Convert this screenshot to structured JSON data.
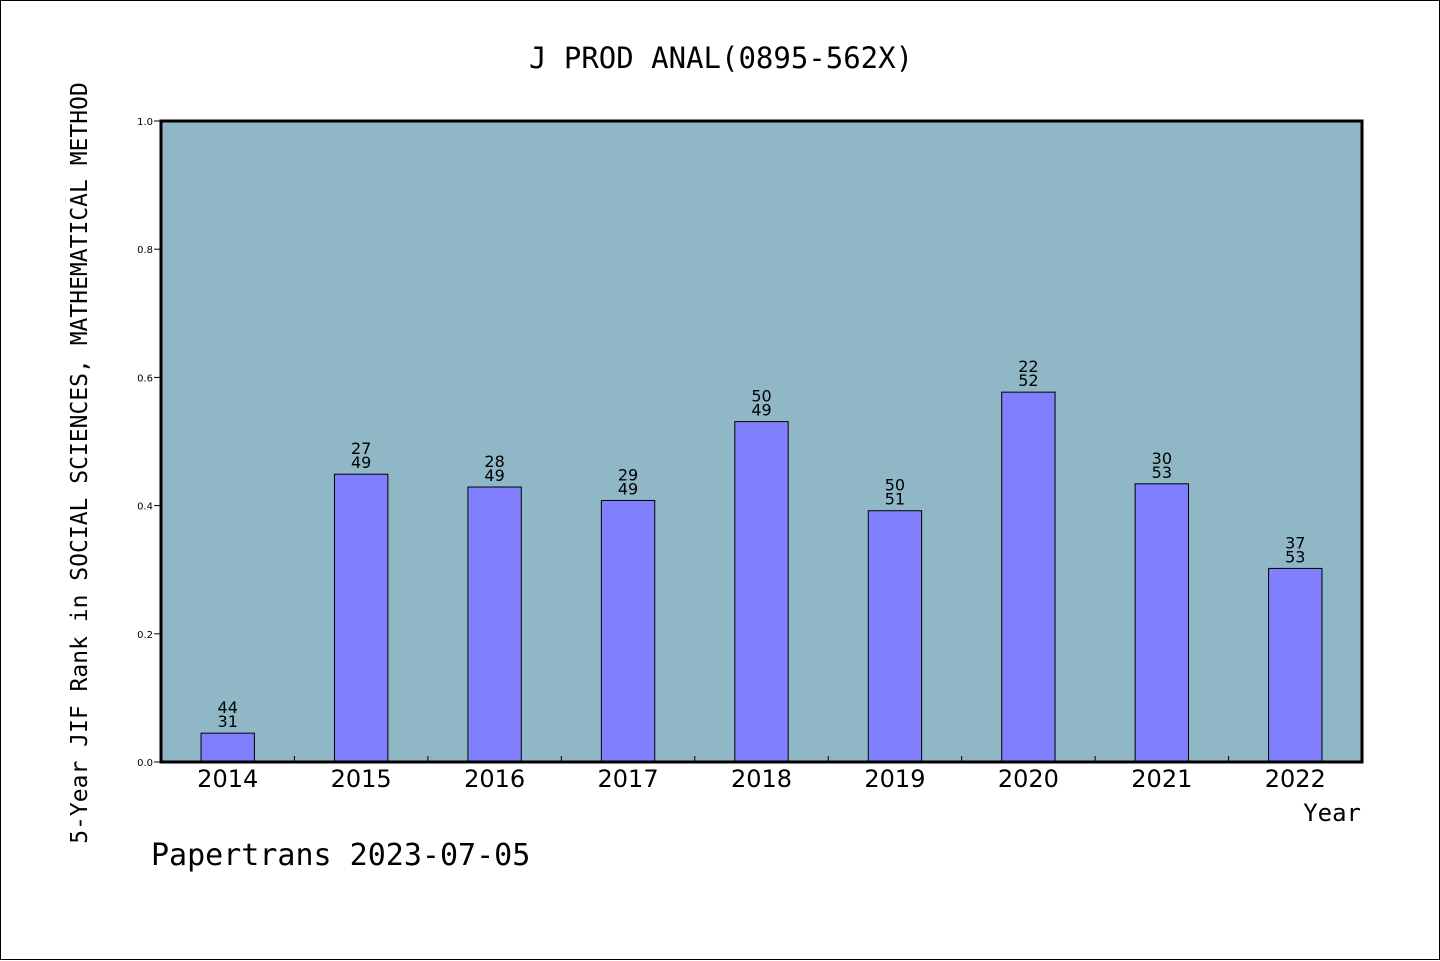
{
  "chart_data": {
    "type": "bar",
    "title": "J PROD ANAL(0895-562X)",
    "xlabel": "Year",
    "ylabel": "5-Year JIF Rank in SOCIAL SCIENCES, MATHEMATICAL METHOD",
    "footer": "Papertrans 2023-07-05",
    "ylim": [
      0.0,
      1.0
    ],
    "yticks": [
      "0.0",
      "0.2",
      "0.4",
      "0.6",
      "0.8",
      "1.0"
    ],
    "categories": [
      "2014",
      "2015",
      "2016",
      "2017",
      "2018",
      "2019",
      "2020",
      "2021",
      "2022"
    ],
    "values": [
      0.045,
      0.449,
      0.429,
      0.408,
      0.531,
      0.392,
      0.577,
      0.434,
      0.302
    ],
    "labels_top": [
      "44",
      "27",
      "28",
      "29",
      "50",
      "50",
      "22",
      "30",
      "37"
    ],
    "labels_bottom": [
      "31",
      "49",
      "49",
      "49",
      "49",
      "51",
      "52",
      "53",
      "53"
    ],
    "grid": false,
    "colors": {
      "plot_background": "#8fb7c6",
      "bar_fill": "#8080ff",
      "bar_stroke": "#000000"
    }
  }
}
